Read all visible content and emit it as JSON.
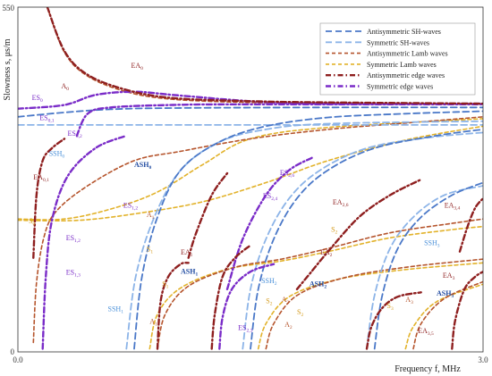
{
  "chart_data": {
    "type": "line",
    "title": "",
    "xlabel": "Frequency  f, MHz",
    "ylabel": "Slowness  s, μs/m",
    "xlim": [
      0.0,
      3.0
    ],
    "ylim": [
      0,
      550
    ],
    "x_ticks": [
      "0.0",
      "3.0"
    ],
    "y_ticks": [
      "0",
      "550"
    ],
    "grid": false,
    "legend_position": "top-right",
    "legend": [
      {
        "name": "Antisymmetric SH-waves",
        "color": "#4a78c8",
        "style": "dash"
      },
      {
        "name": "Symmetric SH-waves",
        "color": "#8cb4e8",
        "style": "dash"
      },
      {
        "name": "Antisymmetric Lamb waves",
        "color": "#b5542c",
        "style": "dash"
      },
      {
        "name": "Symmetric Lamb waves",
        "color": "#e2b22a",
        "style": "dash"
      },
      {
        "name": "Antisymmetric edge waves",
        "color": "#8e1f1f",
        "style": "dashdot"
      },
      {
        "name": "Symmetric edge waves",
        "color": "#7a2cc8",
        "style": "dashdot"
      }
    ],
    "series": [
      {
        "kind": "ash",
        "points": [
          [
            0.0,
            375
          ],
          [
            0.3,
            382
          ],
          [
            0.6,
            387
          ],
          [
            1.0,
            389
          ],
          [
            2.0,
            390
          ],
          [
            3.0,
            390
          ]
        ]
      },
      {
        "kind": "sh",
        "points": [
          [
            0.0,
            362
          ],
          [
            1.0,
            362
          ],
          [
            2.0,
            362
          ],
          [
            3.0,
            362
          ]
        ]
      },
      {
        "kind": "ash",
        "points": [
          [
            0.75,
            5
          ],
          [
            0.8,
            120
          ],
          [
            0.9,
            215
          ],
          [
            1.05,
            290
          ],
          [
            1.3,
            335
          ],
          [
            1.6,
            360
          ],
          [
            2.0,
            374
          ],
          [
            2.5,
            380
          ],
          [
            3.0,
            384
          ]
        ]
      },
      {
        "kind": "sh",
        "points": [
          [
            0.7,
            5
          ],
          [
            0.76,
            120
          ],
          [
            0.88,
            215
          ],
          [
            1.05,
            290
          ],
          [
            1.3,
            335
          ],
          [
            1.6,
            355
          ],
          [
            2.0,
            364
          ],
          [
            3.0,
            368
          ]
        ]
      },
      {
        "kind": "ash",
        "points": [
          [
            1.5,
            5
          ],
          [
            1.55,
            100
          ],
          [
            1.65,
            180
          ],
          [
            1.8,
            245
          ],
          [
            2.0,
            290
          ],
          [
            2.3,
            325
          ],
          [
            2.7,
            345
          ],
          [
            3.0,
            355
          ]
        ]
      },
      {
        "kind": "sh",
        "points": [
          [
            1.45,
            5
          ],
          [
            1.5,
            100
          ],
          [
            1.6,
            180
          ],
          [
            1.75,
            245
          ],
          [
            1.95,
            290
          ],
          [
            2.25,
            325
          ],
          [
            2.65,
            342
          ],
          [
            3.0,
            350
          ]
        ]
      },
      {
        "kind": "ash",
        "points": [
          [
            2.3,
            5
          ],
          [
            2.35,
            90
          ],
          [
            2.45,
            165
          ],
          [
            2.6,
            215
          ],
          [
            2.8,
            250
          ],
          [
            3.0,
            270
          ]
        ]
      },
      {
        "kind": "sh",
        "points": [
          [
            2.25,
            5
          ],
          [
            2.3,
            90
          ],
          [
            2.4,
            165
          ],
          [
            2.55,
            215
          ],
          [
            2.75,
            250
          ],
          [
            3.0,
            265
          ]
        ]
      },
      {
        "kind": "al",
        "points": [
          [
            0.19,
            550
          ],
          [
            0.3,
            478
          ],
          [
            0.45,
            440
          ],
          [
            0.7,
            415
          ],
          [
            1.0,
            403
          ],
          [
            1.5,
            398
          ],
          [
            2.0,
            397
          ],
          [
            3.0,
            396
          ]
        ]
      },
      {
        "kind": "al",
        "points": [
          [
            0.1,
            15
          ],
          [
            0.12,
            110
          ],
          [
            0.17,
            185
          ],
          [
            0.25,
            225
          ],
          [
            0.45,
            265
          ],
          [
            0.75,
            305
          ],
          [
            1.05,
            320
          ],
          [
            1.5,
            340
          ],
          [
            2.0,
            355
          ],
          [
            2.5,
            365
          ],
          [
            3.0,
            375
          ]
        ]
      },
      {
        "kind": "sl",
        "points": [
          [
            0.0,
            212
          ],
          [
            0.3,
            212
          ],
          [
            0.6,
            228
          ],
          [
            0.9,
            255
          ],
          [
            1.2,
            300
          ],
          [
            1.5,
            340
          ],
          [
            2.0,
            358
          ],
          [
            3.0,
            372
          ]
        ]
      },
      {
        "kind": "al",
        "points": [
          [
            0.9,
            5
          ],
          [
            0.95,
            60
          ],
          [
            1.1,
            105
          ],
          [
            1.4,
            135
          ],
          [
            1.7,
            148
          ],
          [
            2.0,
            165
          ],
          [
            2.4,
            190
          ],
          [
            2.8,
            205
          ],
          [
            3.0,
            212
          ]
        ]
      },
      {
        "kind": "sl",
        "points": [
          [
            0.85,
            5
          ],
          [
            0.9,
            60
          ],
          [
            1.05,
            102
          ],
          [
            1.35,
            132
          ],
          [
            1.7,
            145
          ],
          [
            2.0,
            160
          ],
          [
            2.4,
            182
          ],
          [
            2.8,
            195
          ],
          [
            3.0,
            200
          ]
        ]
      },
      {
        "kind": "al",
        "points": [
          [
            1.6,
            5
          ],
          [
            1.65,
            45
          ],
          [
            1.8,
            90
          ],
          [
            2.1,
            118
          ],
          [
            2.5,
            135
          ],
          [
            3.0,
            148
          ]
        ]
      },
      {
        "kind": "sl",
        "points": [
          [
            1.55,
            5
          ],
          [
            1.6,
            45
          ],
          [
            1.75,
            88
          ],
          [
            2.05,
            115
          ],
          [
            2.45,
            130
          ],
          [
            3.0,
            142
          ]
        ]
      },
      {
        "kind": "sl",
        "points": [
          [
            2.5,
            5
          ],
          [
            2.55,
            40
          ],
          [
            2.7,
            80
          ],
          [
            3.0,
            108
          ]
        ]
      },
      {
        "kind": "al",
        "points": [
          [
            2.55,
            5
          ],
          [
            2.6,
            45
          ],
          [
            2.75,
            85
          ],
          [
            3.0,
            112
          ]
        ]
      },
      {
        "kind": "sl",
        "points": [
          [
            0.0,
            210
          ],
          [
            0.4,
            210
          ],
          [
            0.8,
            222
          ],
          [
            1.2,
            240
          ],
          [
            1.6,
            270
          ],
          [
            2.0,
            305
          ],
          [
            2.5,
            338
          ],
          [
            3.0,
            360
          ]
        ]
      },
      {
        "kind": "ae",
        "points": [
          [
            0.19,
            550
          ],
          [
            0.3,
            480
          ],
          [
            0.45,
            442
          ],
          [
            0.7,
            418
          ],
          [
            1.0,
            405
          ],
          [
            1.5,
            400
          ],
          [
            2.0,
            398
          ],
          [
            3.0,
            396
          ]
        ]
      },
      {
        "kind": "ae",
        "points": [
          [
            0.1,
            150
          ],
          [
            0.12,
            250
          ],
          [
            0.16,
            305
          ],
          [
            0.22,
            325
          ],
          [
            0.3,
            340
          ]
        ]
      },
      {
        "kind": "ae",
        "points": [
          [
            0.9,
            5
          ],
          [
            0.92,
            80
          ],
          [
            0.97,
            120
          ],
          [
            1.05,
            140
          ],
          [
            1.1,
            142
          ]
        ]
      },
      {
        "kind": "ae",
        "points": [
          [
            1.1,
            150
          ],
          [
            1.15,
            190
          ],
          [
            1.25,
            250
          ],
          [
            1.35,
            285
          ]
        ]
      },
      {
        "kind": "ae",
        "points": [
          [
            1.25,
            5
          ],
          [
            1.27,
            60
          ],
          [
            1.32,
            120
          ],
          [
            1.4,
            150
          ],
          [
            1.5,
            170
          ]
        ]
      },
      {
        "kind": "ae",
        "points": [
          [
            1.8,
            100
          ],
          [
            1.9,
            130
          ],
          [
            2.0,
            160
          ],
          [
            2.2,
            215
          ],
          [
            2.4,
            250
          ],
          [
            2.6,
            275
          ]
        ]
      },
      {
        "kind": "ae",
        "points": [
          [
            2.25,
            5
          ],
          [
            2.28,
            40
          ],
          [
            2.35,
            70
          ],
          [
            2.45,
            88
          ],
          [
            2.6,
            95
          ]
        ]
      },
      {
        "kind": "ae",
        "points": [
          [
            2.8,
            5
          ],
          [
            2.82,
            50
          ],
          [
            2.88,
            100
          ],
          [
            2.95,
            120
          ],
          [
            3.0,
            128
          ]
        ]
      },
      {
        "kind": "ae",
        "points": [
          [
            2.85,
            160
          ],
          [
            2.9,
            200
          ],
          [
            2.95,
            230
          ],
          [
            3.0,
            245
          ]
        ]
      },
      {
        "kind": "se",
        "points": [
          [
            0.0,
            388
          ],
          [
            0.3,
            394
          ],
          [
            0.5,
            410
          ],
          [
            0.75,
            415
          ],
          [
            1.0,
            410
          ],
          [
            1.5,
            400
          ],
          [
            2.0,
            396
          ],
          [
            3.0,
            396
          ]
        ]
      },
      {
        "kind": "se",
        "points": [
          [
            0.38,
            345
          ],
          [
            0.45,
            380
          ],
          [
            0.6,
            390
          ],
          [
            1.0,
            394
          ],
          [
            1.5,
            395
          ],
          [
            3.0,
            395
          ]
        ]
      },
      {
        "kind": "se",
        "points": [
          [
            0.16,
            5
          ],
          [
            0.18,
            120
          ],
          [
            0.22,
            210
          ],
          [
            0.32,
            280
          ],
          [
            0.5,
            325
          ],
          [
            0.7,
            345
          ]
        ]
      },
      {
        "kind": "se",
        "points": [
          [
            1.3,
            5
          ],
          [
            1.32,
            55
          ],
          [
            1.38,
            100
          ],
          [
            1.5,
            128
          ],
          [
            1.65,
            140
          ]
        ]
      },
      {
        "kind": "se",
        "points": [
          [
            1.35,
            100
          ],
          [
            1.45,
            180
          ],
          [
            1.6,
            250
          ],
          [
            1.75,
            290
          ],
          [
            1.9,
            310
          ]
        ]
      }
    ],
    "annotations": [
      {
        "text": "A",
        "sub": "0",
        "x": 0.28,
        "y": 420,
        "color": "#8e1f1f"
      },
      {
        "text": "EA",
        "sub": "0",
        "x": 0.73,
        "y": 453,
        "color": "#8e1f1f"
      },
      {
        "text": "ES",
        "sub": "0",
        "x": 0.09,
        "y": 402,
        "color": "#7a2cc8"
      },
      {
        "text": "ES",
        "sub": "0,1",
        "x": 0.14,
        "y": 370,
        "color": "#7a2cc8"
      },
      {
        "text": "ES",
        "sub": "0,2",
        "x": 0.32,
        "y": 345,
        "color": "#7a2cc8"
      },
      {
        "text": "SSH",
        "sub": "0",
        "x": 0.2,
        "y": 313,
        "color": "#4a90d9"
      },
      {
        "text": "ASH",
        "sub": "0",
        "x": 0.75,
        "y": 295,
        "color": "#1f4aa0"
      },
      {
        "text": "EA",
        "sub": "0,1",
        "x": 0.1,
        "y": 275,
        "color": "#8e1f1f"
      },
      {
        "text": "ES",
        "sub": "1,2",
        "x": 0.68,
        "y": 230,
        "color": "#7a2cc8"
      },
      {
        "text": "A",
        "sub": "1",
        "x": 0.83,
        "y": 215,
        "color": "#b5542c"
      },
      {
        "text": "S",
        "sub": "0",
        "x": 0.07,
        "y": 205,
        "color": "#d49a1a"
      },
      {
        "text": "S",
        "sub": "1",
        "x": 0.83,
        "y": 160,
        "color": "#d49a1a"
      },
      {
        "text": "ES",
        "sub": "1,2",
        "x": 0.31,
        "y": 178,
        "color": "#7a2cc8"
      },
      {
        "text": "ES",
        "sub": "1,3",
        "x": 0.31,
        "y": 123,
        "color": "#7a2cc8"
      },
      {
        "text": "EA",
        "sub": "1",
        "x": 1.05,
        "y": 155,
        "color": "#8e1f1f"
      },
      {
        "text": "ASH",
        "sub": "1",
        "x": 1.05,
        "y": 125,
        "color": "#1f4aa0"
      },
      {
        "text": "S",
        "sub": "1",
        "x": 0.93,
        "y": 105,
        "color": "#d49a1a"
      },
      {
        "text": "SSH",
        "sub": "1",
        "x": 0.58,
        "y": 65,
        "color": "#4a90d9"
      },
      {
        "text": "A",
        "sub": "1",
        "x": 0.85,
        "y": 45,
        "color": "#b5542c"
      },
      {
        "text": "ES",
        "sub": "2,3",
        "x": 1.42,
        "y": 35,
        "color": "#7a2cc8"
      },
      {
        "text": "ES",
        "sub": "2,4",
        "x": 1.58,
        "y": 245,
        "color": "#7a2cc8"
      },
      {
        "text": "ES",
        "sub": "2,6",
        "x": 1.69,
        "y": 282,
        "color": "#7a2cc8"
      },
      {
        "text": "EA",
        "sub": "2,6",
        "x": 2.03,
        "y": 235,
        "color": "#8e1f1f"
      },
      {
        "text": "S",
        "sub": "2",
        "x": 2.02,
        "y": 192,
        "color": "#d49a1a"
      },
      {
        "text": "EA",
        "sub": "2",
        "x": 1.95,
        "y": 155,
        "color": "#8e1f1f"
      },
      {
        "text": "ASH",
        "sub": "2",
        "x": 1.88,
        "y": 105,
        "color": "#1f4aa0"
      },
      {
        "text": "SSH",
        "sub": "2",
        "x": 1.57,
        "y": 110,
        "color": "#4a90d9"
      },
      {
        "text": "A",
        "sub": "2",
        "x": 1.7,
        "y": 80,
        "color": "#b5542c"
      },
      {
        "text": "S",
        "sub": "2",
        "x": 1.6,
        "y": 78,
        "color": "#d49a1a"
      },
      {
        "text": "S",
        "sub": "2",
        "x": 1.8,
        "y": 60,
        "color": "#d49a1a"
      },
      {
        "text": "A",
        "sub": "2",
        "x": 1.72,
        "y": 40,
        "color": "#b5542c"
      },
      {
        "text": "EA",
        "sub": "3,4",
        "x": 2.75,
        "y": 230,
        "color": "#8e1f1f"
      },
      {
        "text": "SSH",
        "sub": "3",
        "x": 2.62,
        "y": 170,
        "color": "#4a90d9"
      },
      {
        "text": "EA",
        "sub": "3",
        "x": 2.74,
        "y": 118,
        "color": "#8e1f1f"
      },
      {
        "text": "ASH",
        "sub": "3",
        "x": 2.7,
        "y": 90,
        "color": "#1f4aa0"
      },
      {
        "text": "A",
        "sub": "3",
        "x": 2.5,
        "y": 80,
        "color": "#b5542c"
      },
      {
        "text": "S",
        "sub": "3",
        "x": 2.38,
        "y": 70,
        "color": "#d49a1a"
      },
      {
        "text": "EA",
        "sub": "3,5",
        "x": 2.58,
        "y": 30,
        "color": "#8e1f1f"
      }
    ]
  }
}
